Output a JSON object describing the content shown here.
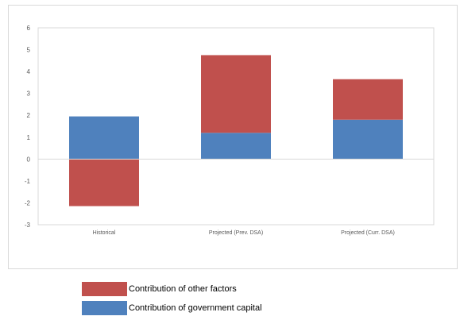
{
  "chart_data": {
    "type": "bar",
    "stacked": true,
    "categories": [
      "Historical",
      "Projected (Prev. DSA)",
      "Projected (Curr. DSA)"
    ],
    "series": [
      {
        "name": "Contribution of government capital",
        "color": "#4F81BD",
        "values": [
          1.95,
          1.2,
          1.8
        ]
      },
      {
        "name": "Contribution of other factors",
        "color": "#C0504D",
        "values": [
          -2.15,
          3.55,
          1.85
        ]
      }
    ],
    "ylim": [
      -3,
      6
    ],
    "yticks": [
      -3,
      -2,
      -1,
      0,
      1,
      2,
      3,
      4,
      5,
      6
    ],
    "grid": false,
    "legend_position": "bottom"
  },
  "legend": {
    "items": [
      {
        "label": "Contribution of other factors",
        "color": "#C0504D"
      },
      {
        "label": "Contribution of government capital",
        "color": "#4F81BD"
      }
    ]
  }
}
